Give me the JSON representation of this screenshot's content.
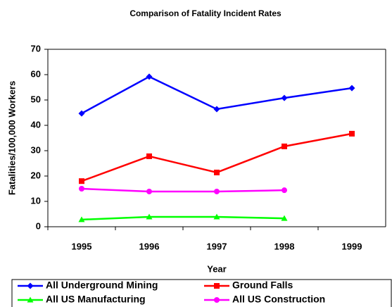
{
  "chart_data": {
    "type": "line",
    "title": "Comparison of Fatality Incident Rates",
    "x_label": "Year",
    "y_label": "Fatalities/100,000 Workers",
    "categories": [
      "1995",
      "1996",
      "1997",
      "1998",
      "1999"
    ],
    "series": [
      {
        "name": "All Underground Mining",
        "color": "#0000ff",
        "marker": "diamond",
        "values": [
          44.7,
          59.2,
          46.4,
          50.8,
          54.7
        ]
      },
      {
        "name": "Ground Falls",
        "color": "#ff0000",
        "marker": "square",
        "values": [
          18,
          27.8,
          21.4,
          31.7,
          36.7
        ]
      },
      {
        "name": "All US Manufacturing",
        "color": "#00ff00",
        "marker": "triangle",
        "values": [
          2.8,
          3.9,
          3.9,
          3.3,
          null
        ]
      },
      {
        "name": "All US Construction",
        "color": "#ff00ff",
        "marker": "circle",
        "values": [
          15,
          13.9,
          13.9,
          14.4,
          null
        ]
      }
    ],
    "ylim": [
      0,
      70
    ],
    "yticks": [
      0,
      10,
      20,
      30,
      40,
      50,
      60,
      70
    ],
    "grid": false
  }
}
